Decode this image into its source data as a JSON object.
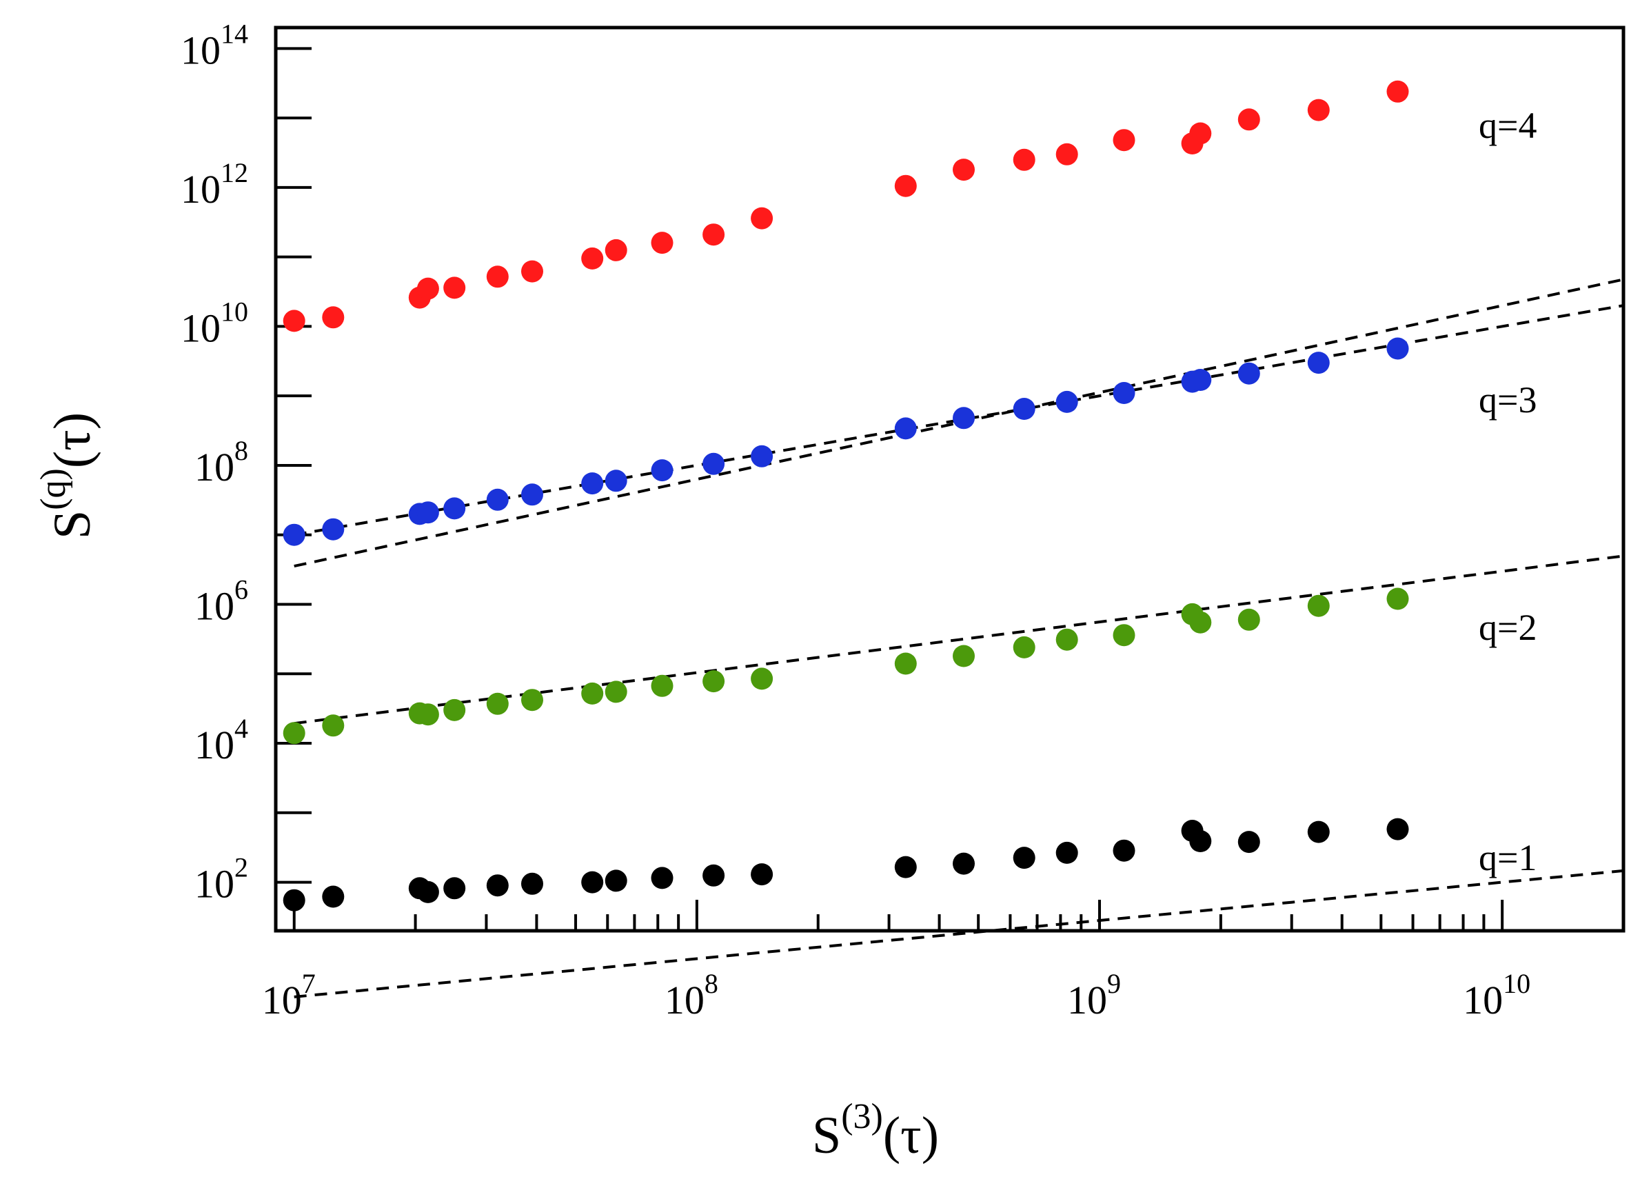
{
  "chart_data": {
    "type": "scatter",
    "scale": "log-log",
    "xlabel": {
      "base": "S",
      "sup": "(3)",
      "arg": "(τ)"
    },
    "ylabel": {
      "base": "S",
      "sup": "(q)",
      "arg": "(τ)"
    },
    "xlim": [
      9000000.0,
      20000000000.0
    ],
    "ylim": [
      20,
      200000000000000.0
    ],
    "x_ticks": [
      {
        "value": 10000000.0,
        "mantissa": "10",
        "exp": "7"
      },
      {
        "value": 100000000.0,
        "mantissa": "10",
        "exp": "8"
      },
      {
        "value": 1000000000.0,
        "mantissa": "10",
        "exp": "9"
      },
      {
        "value": 10000000000.0,
        "mantissa": "10",
        "exp": "10"
      }
    ],
    "y_ticks": [
      {
        "value": 100.0,
        "mantissa": "10",
        "exp": "2"
      },
      {
        "value": 10000.0,
        "mantissa": "10",
        "exp": "4"
      },
      {
        "value": 1000000.0,
        "mantissa": "10",
        "exp": "6"
      },
      {
        "value": 100000000.0,
        "mantissa": "10",
        "exp": "8"
      },
      {
        "value": 10000000000.0,
        "mantissa": "10",
        "exp": "10"
      },
      {
        "value": 1000000000000.0,
        "mantissa": "10",
        "exp": "12"
      },
      {
        "value": 100000000000000.0,
        "mantissa": "10",
        "exp": "14"
      }
    ],
    "x": [
      10000000.0,
      12500000.0,
      20500000.0,
      21500000.0,
      25000000.0,
      32000000.0,
      39000000.0,
      55000000.0,
      63000000.0,
      82000000.0,
      110000000.0,
      145000000.0,
      330000000.0,
      460000000.0,
      650000000.0,
      830000000.0,
      1150000000.0,
      1700000000.0,
      1780000000.0,
      2350000000.0,
      3500000000.0,
      5500000000.0
    ],
    "series": [
      {
        "name": "q=1",
        "color": "#000000",
        "values": [
          55,
          62,
          82,
          72,
          82,
          90,
          95,
          100,
          105,
          115,
          125,
          130,
          165,
          185,
          225,
          265,
          285,
          550,
          390,
          380,
          530,
          580
        ],
        "fit": {
          "a": 0.000316,
          "b": 0.55
        }
      },
      {
        "name": "q=2",
        "color": "#4c9a0c",
        "values": [
          14000,
          18000,
          27000,
          26000,
          30000,
          37000,
          42000,
          52000,
          55000,
          67000,
          78000,
          85000,
          140000,
          180000,
          240000,
          310000,
          360000,
          720000,
          550000,
          600000,
          950000,
          1200000
        ],
        "fit": {
          "a": 0.15,
          "b": 0.73
        }
      },
      {
        "name": "q=3",
        "color": "#1a33d9",
        "values": [
          10000000.0,
          12000000.0,
          20000000.0,
          21000000.0,
          24000000.0,
          32000000.0,
          38000000.0,
          55000000.0,
          60000000.0,
          85000000.0,
          105000000.0,
          135000000.0,
          340000000.0,
          480000000.0,
          650000000.0,
          820000000.0,
          1100000000.0,
          1600000000.0,
          1700000000.0,
          2100000000.0,
          3000000000.0,
          4800000000.0
        ],
        "fit": {
          "a": 1.0,
          "b": 1.0
        }
      },
      {
        "name": "q=4",
        "color": "#ff1a1a",
        "values": [
          12000000000.0,
          13500000000.0,
          26000000000.0,
          35000000000.0,
          36000000000.0,
          52000000000.0,
          62000000000.0,
          95000000000.0,
          125000000000.0,
          160000000000.0,
          210000000000.0,
          360000000000.0,
          1050000000000.0,
          1800000000000.0,
          2500000000000.0,
          3000000000000.0,
          4800000000000.0,
          4300000000000.0,
          6000000000000.0,
          9500000000000.0,
          13000000000000.0,
          24000000000000.0
        ],
        "fit": {
          "a": 0.0063,
          "b": 1.25
        }
      }
    ]
  }
}
